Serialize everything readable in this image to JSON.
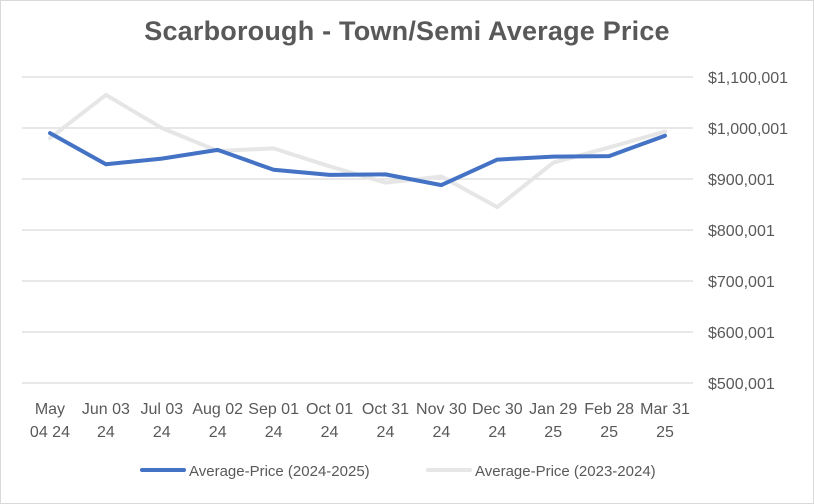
{
  "chart_data": {
    "type": "line",
    "title": "Scarborough - Town/Semi Average Price",
    "categories": [
      [
        "May",
        "04 24"
      ],
      [
        "Jun 03",
        "24"
      ],
      [
        "Jul 03",
        "24"
      ],
      [
        "Aug 02",
        "24"
      ],
      [
        "Sep 01",
        "24"
      ],
      [
        "Oct 01",
        "24"
      ],
      [
        "Oct 31",
        "24"
      ],
      [
        "Nov 30",
        "24"
      ],
      [
        "Dec 30",
        "24"
      ],
      [
        "Jan 29",
        "25"
      ],
      [
        "Feb 28",
        "25"
      ],
      [
        "Mar 31",
        "25"
      ]
    ],
    "series": [
      {
        "name": "Average-Price (2024-2025)",
        "color": "#4472c4",
        "values": [
          990000,
          929000,
          940000,
          957000,
          918000,
          908000,
          909000,
          888000,
          938000,
          944000,
          945000,
          985000
        ]
      },
      {
        "name": "Average-Price (2023-2024)",
        "color": "#e7e6e6",
        "values": [
          980000,
          1065000,
          1000000,
          955000,
          960000,
          925000,
          893000,
          905000,
          845000,
          932000,
          962000,
          993000
        ]
      }
    ],
    "yaxis": {
      "position": "right",
      "min": 500001,
      "max": 1100001,
      "step": 100000,
      "tick_labels": [
        "$500,001",
        "$600,001",
        "$700,001",
        "$800,001",
        "$900,001",
        "$1,000,001",
        "$1,100,001"
      ]
    },
    "grid": true,
    "legend_position": "bottom"
  }
}
